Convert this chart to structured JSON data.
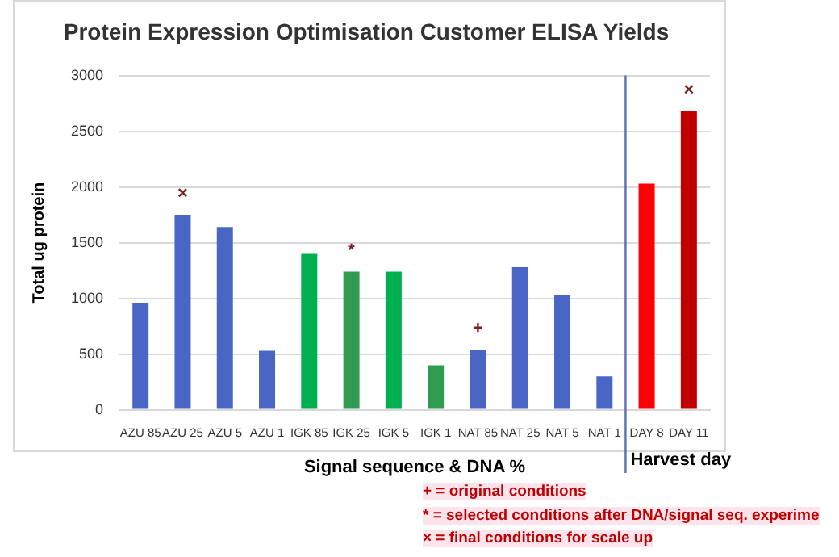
{
  "chart_data": {
    "type": "bar",
    "title": "Protein Expression Optimisation Customer ELISA Yields",
    "xlabel": "Signal sequence & DNA %",
    "ylabel": "Total ug protein",
    "categories": [
      "AZU 85",
      "AZU 25",
      "AZU 5",
      "AZU 1",
      "IGK 85",
      "IGK 25",
      "IGK 5",
      "IGK 1",
      "NAT 85",
      "NAT 25",
      "NAT 5",
      "NAT 1",
      "DAY 8",
      "DAY 11"
    ],
    "values": [
      960,
      1750,
      1640,
      530,
      1400,
      1240,
      1240,
      400,
      540,
      1280,
      1030,
      300,
      2030,
      2680
    ],
    "colors": [
      "#4a66c4",
      "#4a66c4",
      "#4a66c4",
      "#4a66c4",
      "#00b050",
      "#2f9a50",
      "#00b050",
      "#2f9a50",
      "#4a66c4",
      "#4a66c4",
      "#4a66c4",
      "#4a66c4",
      "#ff0000",
      "#c00000"
    ],
    "ylim": [
      0,
      3000
    ],
    "yticks": [
      0,
      500,
      1000,
      1500,
      2000,
      2500,
      3000
    ],
    "grid": "y",
    "legend": false,
    "ref_lines": [
      {
        "axis": "x",
        "value": "DAY 8",
        "color": "#5b6fb0"
      }
    ],
    "annotations": [
      {
        "text": "×",
        "x": "AZU 25",
        "y": 1750
      },
      {
        "text": "*",
        "x": "IGK 25",
        "y": 1240
      },
      {
        "text": "+",
        "x": "NAT 85",
        "y": 540
      },
      {
        "text": "×",
        "x": "DAY 11",
        "y": 2680
      },
      "Harvest day",
      "+ = original conditions",
      "* = selected conditions after DNA/signal seq. experime",
      "× = final conditions for scale up"
    ]
  }
}
